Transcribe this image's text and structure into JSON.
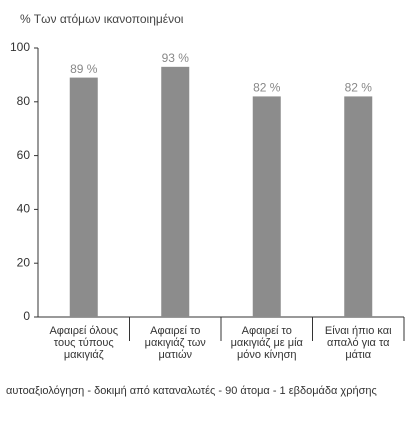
{
  "chart_data": {
    "type": "bar",
    "title": "% Των ατόμων ικανοποιημένοι",
    "categories": [
      "Αφαιρεί όλους τους τύπους μακιγιάζ",
      "Αφαιρεί το μακιγιάζ των ματιών",
      "Αφαιρεί το μακιγιάζ με μία μόνο κίνηση",
      "Είναι ήπιο και απαλό για τα μάτια"
    ],
    "values": [
      89,
      93,
      82,
      82
    ],
    "value_labels": [
      "89 %",
      "93 %",
      "82 %",
      "82 %"
    ],
    "color": "#8c8c8c",
    "ylim": [
      0,
      100
    ],
    "yticks": [
      0,
      20,
      40,
      60,
      80,
      100
    ],
    "footnote": "αυτοαξιολόγηση - δοκιμή από καταναλωτές - 90 άτομα - 1 εβδομάδα χρήσης"
  }
}
